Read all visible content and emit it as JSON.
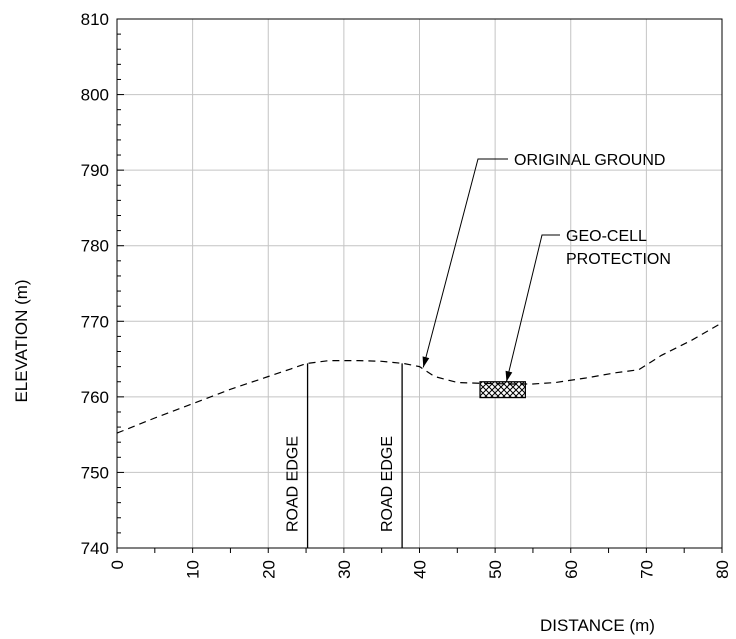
{
  "chart_data": {
    "type": "line",
    "title": "",
    "xlabel": "DISTANCE (m)",
    "ylabel": "ELEVATION (m)",
    "xlim": [
      0,
      80
    ],
    "ylim": [
      740,
      810
    ],
    "x_ticks": [
      0,
      10,
      20,
      30,
      40,
      50,
      60,
      70,
      80
    ],
    "y_ticks": [
      740,
      750,
      760,
      770,
      780,
      790,
      800,
      810
    ],
    "grid": true,
    "series": [
      {
        "name": "",
        "style": "dashed",
        "color": "#000000",
        "x": [
          0,
          5,
          10,
          15,
          20,
          23,
          25,
          28,
          32,
          35,
          38,
          40,
          42,
          45,
          48,
          52,
          55,
          58,
          62,
          66,
          69,
          72,
          76,
          80
        ],
        "y": [
          755.2,
          757.2,
          759.1,
          761.0,
          762.7,
          763.7,
          764.4,
          764.8,
          764.8,
          764.7,
          764.4,
          764.0,
          762.7,
          761.9,
          761.8,
          761.7,
          761.7,
          761.9,
          762.5,
          763.2,
          763.6,
          765.5,
          767.5,
          769.8
        ]
      }
    ],
    "road_edges": [
      {
        "x": 25.2,
        "label": "ROAD EDGE"
      },
      {
        "x": 37.7,
        "label": "ROAD EDGE"
      }
    ],
    "geo_cell": {
      "x": [
        48,
        54
      ],
      "y": [
        759.9,
        762.0
      ]
    },
    "annotations": [
      {
        "text": "ORIGINAL GROUND",
        "points_to": [
          40.5,
          763.9
        ]
      },
      {
        "text": "GEO-CELL",
        "text2": "PROTECTION",
        "points_to": [
          51.5,
          762.0
        ]
      }
    ]
  }
}
